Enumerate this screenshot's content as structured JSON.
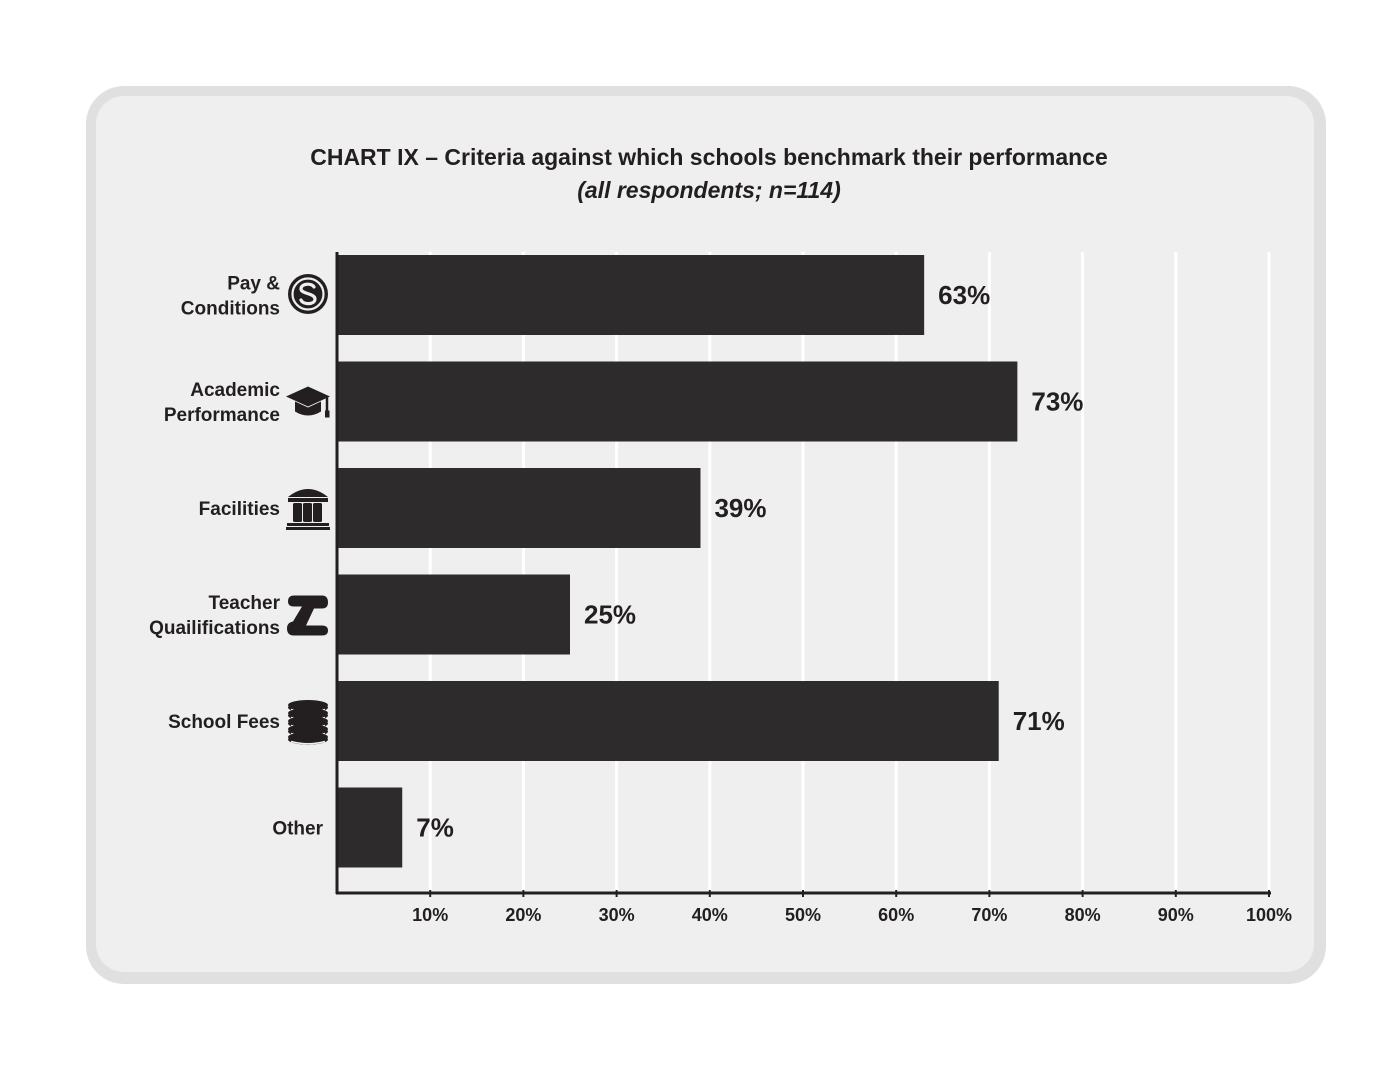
{
  "chart_data": {
    "type": "bar",
    "orientation": "horizontal",
    "title": "CHART IX – Criteria against which schools benchmark their performance",
    "subtitle": "(all respondents; n=114)",
    "categories": [
      {
        "lines": [
          "Pay &",
          "Conditions"
        ],
        "icon": "dollar-coin-icon"
      },
      {
        "lines": [
          "Academic",
          "Performance"
        ],
        "icon": "graduation-cap-icon"
      },
      {
        "lines": [
          "Facilities"
        ],
        "icon": "building-icon"
      },
      {
        "lines": [
          "Teacher",
          "Quailifications"
        ],
        "icon": "scroll-icon"
      },
      {
        "lines": [
          "School Fees"
        ],
        "icon": "coin-stack-icon"
      },
      {
        "lines": [
          "Other"
        ],
        "icon": ""
      }
    ],
    "values": [
      63,
      73,
      39,
      25,
      71,
      7
    ],
    "value_labels": [
      "63%",
      "73%",
      "39%",
      "25%",
      "71%",
      "7%"
    ],
    "xlim": [
      0,
      100
    ],
    "xticks": [
      "10%",
      "20%",
      "30%",
      "40%",
      "50%",
      "60%",
      "70%",
      "80%",
      "90%",
      "100%"
    ],
    "grid": true,
    "colors": {
      "bar": "#2d2b2c",
      "text": "#231f20",
      "grid": "#ffffff",
      "panel": "#efefef",
      "frame": "#e0e0e0"
    }
  }
}
